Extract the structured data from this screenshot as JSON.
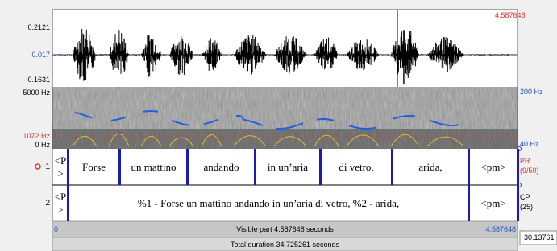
{
  "waveform": {
    "ymax": "0.2121",
    "ymid": "0.017",
    "ymin": "-0.1631",
    "time_end": "4.587648"
  },
  "spectrogram": {
    "fmax": "5000 Hz",
    "fmark": "1072 Hz",
    "fmin": "0 Hz",
    "pitch_max": "200 Hz",
    "pitch_min": "40 Hz"
  },
  "tiers": [
    {
      "number": "1",
      "label": "PR",
      "count": "(9/50)",
      "intervals": [
        "<P>",
        "Forse",
        "un mattino",
        "andando",
        "in un’aria",
        "di vetro,",
        "arida,",
        "<pm>"
      ]
    },
    {
      "number": "2",
      "label": "CP",
      "count": "(25)",
      "intervals": [
        "<P>",
        "%1 - Forse un mattino andando in un’aria di vetro, %2 - arida,",
        "<pm>"
      ]
    }
  ],
  "footer": {
    "start": "0",
    "visible": "Visible part 4.587648 seconds",
    "end": "4.587648",
    "total": "Total duration 34.725261 seconds",
    "scroll_value": "30.13761"
  }
}
